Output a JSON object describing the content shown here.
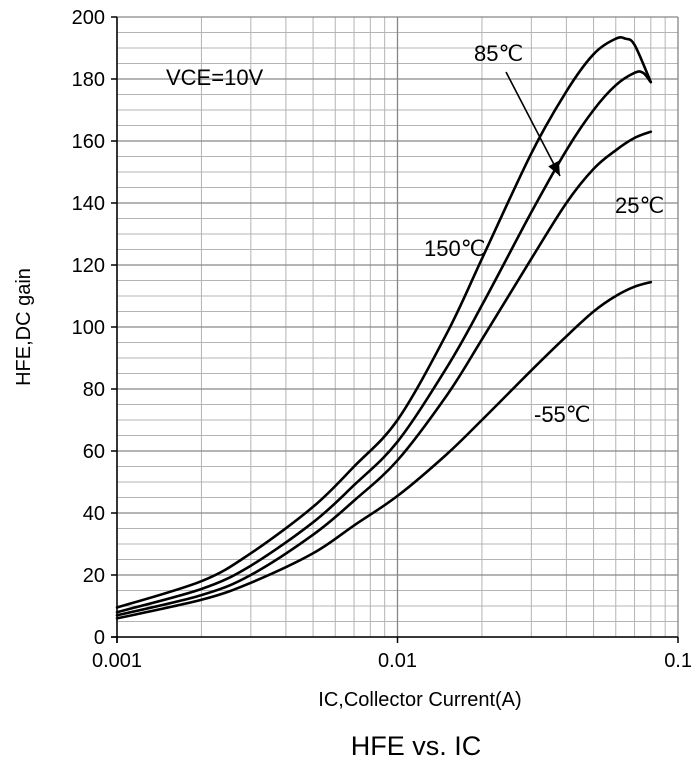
{
  "chart_data": {
    "type": "line",
    "title": "HFE vs. IC",
    "xlabel": "IC,Collector Current(A)",
    "ylabel": "HFE,DC gain",
    "x_scale": "log",
    "xlim": [
      0.001,
      0.1
    ],
    "ylim": [
      0,
      200
    ],
    "x_ticks": [
      0.001,
      0.01,
      0.1
    ],
    "x_tick_labels": [
      "0.001",
      "0.01",
      "0.1"
    ],
    "y_ticks": [
      0,
      20,
      40,
      60,
      80,
      100,
      120,
      140,
      160,
      180,
      200
    ],
    "y_tick_labels": [
      "0",
      "20",
      "40",
      "60",
      "80",
      "100",
      "120",
      "140",
      "160",
      "180",
      "200"
    ],
    "grid": true,
    "legend": "none",
    "condition_label": "VCE=10V",
    "series": [
      {
        "name": "150℃",
        "x": [
          0.001,
          0.002,
          0.003,
          0.005,
          0.007,
          0.01,
          0.015,
          0.02,
          0.03,
          0.04,
          0.05,
          0.06,
          0.065,
          0.07,
          0.08
        ],
        "y": [
          9.5,
          18,
          27,
          42,
          55,
          70,
          98,
          122,
          156,
          176,
          188,
          193,
          193,
          191,
          179
        ]
      },
      {
        "name": "85℃",
        "x": [
          0.001,
          0.002,
          0.003,
          0.005,
          0.007,
          0.01,
          0.015,
          0.02,
          0.03,
          0.04,
          0.05,
          0.06,
          0.07,
          0.075,
          0.08
        ],
        "y": [
          8,
          15.5,
          23,
          37,
          49,
          63,
          87,
          107,
          137,
          157,
          170,
          178,
          182,
          182,
          179
        ]
      },
      {
        "name": "25℃",
        "x": [
          0.001,
          0.002,
          0.003,
          0.005,
          0.007,
          0.01,
          0.015,
          0.02,
          0.03,
          0.04,
          0.05,
          0.06,
          0.07,
          0.08
        ],
        "y": [
          7,
          13.5,
          20,
          33,
          44,
          57,
          78,
          96,
          122,
          140,
          151,
          157,
          161,
          163
        ]
      },
      {
        "name": "-55℃",
        "x": [
          0.001,
          0.002,
          0.003,
          0.005,
          0.007,
          0.01,
          0.015,
          0.02,
          0.03,
          0.04,
          0.05,
          0.06,
          0.07,
          0.08
        ],
        "y": [
          6,
          12,
          17.5,
          27,
          36,
          45.5,
          59,
          70,
          86,
          97,
          105,
          110,
          113,
          114.5
        ]
      }
    ],
    "annotations": [
      {
        "text": "85℃",
        "series": "85℃",
        "arrow": true
      },
      {
        "text": "150℃",
        "series": "150℃"
      },
      {
        "text": "25℃",
        "series": "25℃"
      },
      {
        "text": "-55℃",
        "series": "-55℃"
      }
    ],
    "colors": {
      "curve": "#000000",
      "major_grid": "#868686",
      "minor_grid": "#b4b4b4",
      "axis": "#000000",
      "background": "#ffffff"
    }
  }
}
